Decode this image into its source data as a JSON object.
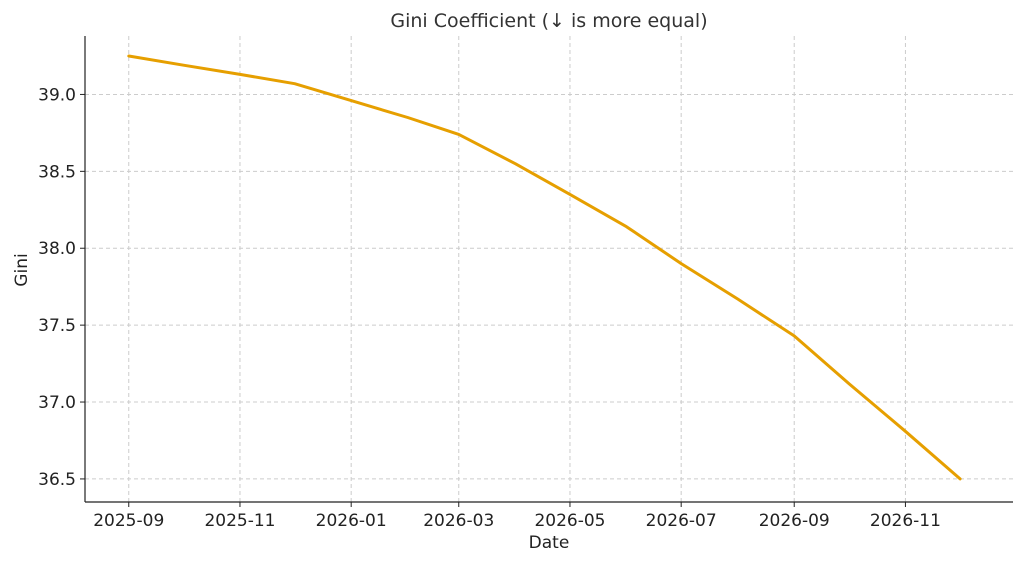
{
  "chart_data": {
    "type": "line",
    "title": "Gini Coefficient (↓ is more equal)",
    "xlabel": "Date",
    "ylabel": "Gini",
    "x_ticks": [
      "2025-09",
      "2025-11",
      "2026-01",
      "2026-03",
      "2026-05",
      "2026-07",
      "2026-09",
      "2026-11"
    ],
    "y_ticks": [
      36.5,
      37.0,
      37.5,
      38.0,
      38.5,
      39.0
    ],
    "xlim": [
      "2025-08-08",
      "2026-12-30"
    ],
    "ylim": [
      36.35,
      39.38
    ],
    "grid": true,
    "series": [
      {
        "color": "#e69f00",
        "points": [
          {
            "x": "2025-09-01",
            "y": 39.25
          },
          {
            "x": "2025-10-01",
            "y": 39.19
          },
          {
            "x": "2025-11-01",
            "y": 39.13
          },
          {
            "x": "2025-12-01",
            "y": 39.07
          },
          {
            "x": "2026-01-01",
            "y": 38.96
          },
          {
            "x": "2026-02-01",
            "y": 38.85
          },
          {
            "x": "2026-03-01",
            "y": 38.74
          },
          {
            "x": "2026-04-01",
            "y": 38.55
          },
          {
            "x": "2026-05-01",
            "y": 38.35
          },
          {
            "x": "2026-06-01",
            "y": 38.14
          },
          {
            "x": "2026-07-01",
            "y": 37.9
          },
          {
            "x": "2026-08-01",
            "y": 37.67
          },
          {
            "x": "2026-09-01",
            "y": 37.43
          },
          {
            "x": "2026-10-01",
            "y": 37.12
          },
          {
            "x": "2026-11-01",
            "y": 36.81
          },
          {
            "x": "2026-12-01",
            "y": 36.5
          }
        ]
      }
    ]
  }
}
